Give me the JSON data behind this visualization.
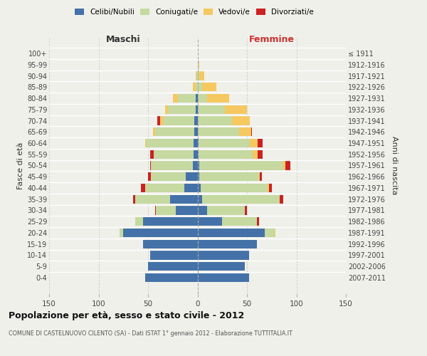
{
  "age_groups": [
    "0-4",
    "5-9",
    "10-14",
    "15-19",
    "20-24",
    "25-29",
    "30-34",
    "35-39",
    "40-44",
    "45-49",
    "50-54",
    "55-59",
    "60-64",
    "65-69",
    "70-74",
    "75-79",
    "80-84",
    "85-89",
    "90-94",
    "95-99",
    "100+"
  ],
  "birth_years": [
    "2007-2011",
    "2002-2006",
    "1997-2001",
    "1992-1996",
    "1987-1991",
    "1982-1986",
    "1977-1981",
    "1972-1976",
    "1967-1971",
    "1962-1966",
    "1957-1961",
    "1952-1956",
    "1947-1951",
    "1942-1946",
    "1937-1941",
    "1932-1936",
    "1927-1931",
    "1922-1926",
    "1917-1921",
    "1912-1916",
    "≤ 1911"
  ],
  "maschi": {
    "celibi": [
      53,
      50,
      48,
      55,
      75,
      55,
      22,
      28,
      13,
      12,
      5,
      4,
      4,
      3,
      3,
      2,
      2,
      0,
      0,
      0,
      0
    ],
    "coniugati": [
      0,
      0,
      0,
      0,
      4,
      8,
      20,
      35,
      40,
      35,
      42,
      40,
      48,
      40,
      32,
      28,
      18,
      2,
      1,
      0,
      0
    ],
    "vedovi": [
      0,
      0,
      0,
      0,
      0,
      0,
      0,
      0,
      0,
      0,
      0,
      0,
      1,
      2,
      3,
      3,
      5,
      3,
      1,
      0,
      0
    ],
    "divorziati": [
      0,
      0,
      0,
      0,
      0,
      0,
      1,
      2,
      4,
      3,
      1,
      4,
      0,
      0,
      3,
      0,
      0,
      0,
      0,
      0,
      0
    ]
  },
  "femmine": {
    "nubili": [
      52,
      48,
      52,
      60,
      68,
      25,
      10,
      5,
      3,
      2,
      2,
      1,
      1,
      0,
      0,
      0,
      0,
      0,
      0,
      0,
      0
    ],
    "coniugate": [
      0,
      0,
      0,
      0,
      10,
      35,
      38,
      78,
      68,
      60,
      85,
      55,
      52,
      42,
      35,
      28,
      10,
      5,
      2,
      1,
      0
    ],
    "vedove": [
      0,
      0,
      0,
      0,
      1,
      0,
      0,
      0,
      1,
      1,
      2,
      5,
      8,
      12,
      18,
      22,
      22,
      14,
      5,
      1,
      0
    ],
    "divorziate": [
      0,
      0,
      0,
      0,
      0,
      2,
      2,
      4,
      3,
      2,
      5,
      5,
      5,
      1,
      0,
      0,
      0,
      0,
      0,
      0,
      0
    ]
  },
  "colors": {
    "celibi": "#4472a8",
    "coniugati": "#c5d9a0",
    "vedovi": "#f5c860",
    "divorziati": "#cc2222"
  },
  "legend_labels": [
    "Celibi/Nubili",
    "Coniugati/e",
    "Vedovi/e",
    "Divorziati/e"
  ],
  "title_main": "Popolazione per età, sesso e stato civile - 2012",
  "title_sub": "COMUNE DI CASTELNUOVO CILENTO (SA) - Dati ISTAT 1° gennaio 2012 - Elaborazione TUTTITALIA.IT",
  "xlabel_left": "Maschi",
  "xlabel_right": "Femmine",
  "ylabel_left": "Fasce di età",
  "ylabel_right": "Anni di nascita",
  "xlim": 150,
  "xticks": [
    -150,
    -100,
    -50,
    0,
    50,
    100,
    150
  ],
  "xticklabels": [
    "150",
    "100",
    "50",
    "0",
    "50",
    "100",
    "150"
  ],
  "background_color": "#f0f0eb"
}
